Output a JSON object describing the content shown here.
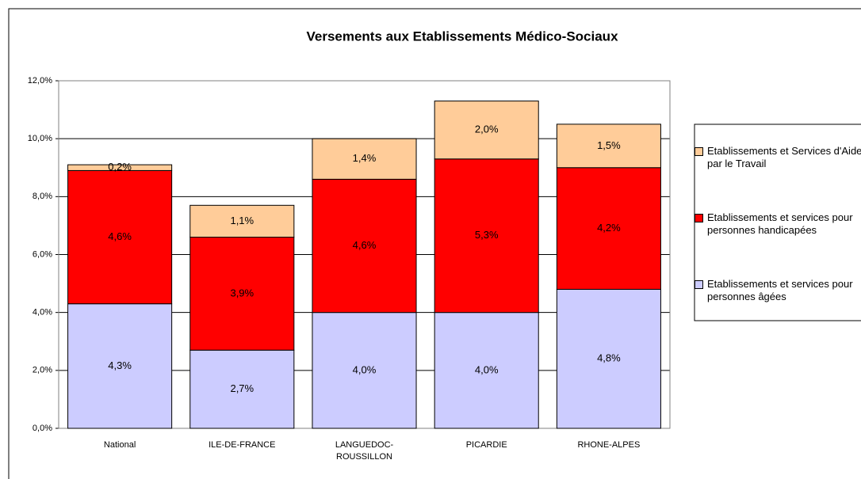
{
  "chart_data": {
    "type": "stacked_bar",
    "title": "Versements aux Etablissements Médico-Sociaux",
    "categories": [
      "National",
      "ILE-DE-FRANCE",
      "LANGUEDOC-ROUSSILLON",
      "PICARDIE",
      "RHONE-ALPES"
    ],
    "series": [
      {
        "name": "Etablissements et services pour personnes âgées",
        "color": "#ccccff",
        "values": [
          4.3,
          2.7,
          4.0,
          4.0,
          4.8
        ],
        "value_labels": [
          "4,3%",
          "2,7%",
          "4,0%",
          "4,0%",
          "4,8%"
        ]
      },
      {
        "name": "Etablissements et services pour personnes handicapées",
        "color": "#ff0000",
        "values": [
          4.6,
          3.9,
          4.6,
          5.3,
          4.2
        ],
        "value_labels": [
          "4,6%",
          "3,9%",
          "4,6%",
          "5,3%",
          "4,2%"
        ]
      },
      {
        "name": "Etablissements et Services d'Aide par le Travail",
        "color": "#ffcc99",
        "values": [
          0.2,
          1.1,
          1.4,
          2.0,
          1.5
        ],
        "value_labels": [
          "0,2%",
          "1,1%",
          "1,4%",
          "2,0%",
          "1,5%"
        ]
      }
    ],
    "ylim": [
      0,
      12
    ],
    "yticks": [
      {
        "value": 0,
        "label": "0,0%"
      },
      {
        "value": 2,
        "label": "2,0%"
      },
      {
        "value": 4,
        "label": "4,0%"
      },
      {
        "value": 6,
        "label": "6,0%"
      },
      {
        "value": 8,
        "label": "8,0%"
      },
      {
        "value": 10,
        "label": "10,0%"
      },
      {
        "value": 12,
        "label": "12,0%"
      }
    ],
    "grid": true,
    "legend": "right"
  }
}
